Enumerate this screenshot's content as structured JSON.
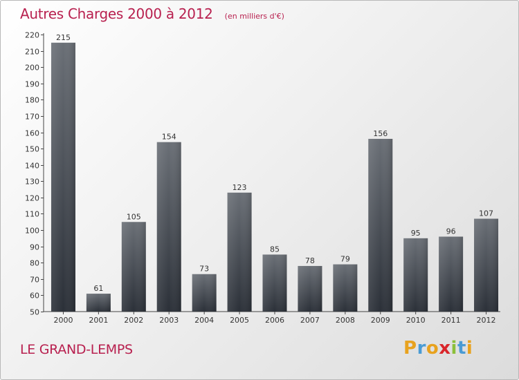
{
  "header": {
    "title": "Autres Charges 2000 à 2012",
    "unit": "(en milliers d'€)"
  },
  "footer": {
    "commune": "LE GRAND-LEMPS",
    "logo_text": "Proxiti",
    "logo_colors": [
      "#e8a21e",
      "#4a9bd4",
      "#e8a21e",
      "#d9262b",
      "#8bbf3a",
      "#4a9bd4",
      "#e8a21e"
    ]
  },
  "colors": {
    "title": "#b8204f",
    "bar_top": "#6a6f76",
    "bar_bottom": "#2b3038",
    "axis": "#444444",
    "grid": "#dddddd"
  },
  "chart_data": {
    "type": "bar",
    "title": "Autres Charges 2000 à 2012",
    "unit": "(en milliers d'€)",
    "xlabel": "",
    "ylabel": "",
    "categories": [
      "2000",
      "2001",
      "2002",
      "2003",
      "2004",
      "2005",
      "2006",
      "2007",
      "2008",
      "2009",
      "2010",
      "2011",
      "2012"
    ],
    "values": [
      215,
      61,
      105,
      154,
      73,
      123,
      85,
      78,
      79,
      156,
      95,
      96,
      107
    ],
    "ylim": [
      50,
      220
    ],
    "yticks": [
      50,
      60,
      70,
      80,
      90,
      100,
      110,
      120,
      130,
      140,
      150,
      160,
      170,
      180,
      190,
      200,
      210,
      220
    ],
    "grid": false,
    "legend": "none"
  }
}
